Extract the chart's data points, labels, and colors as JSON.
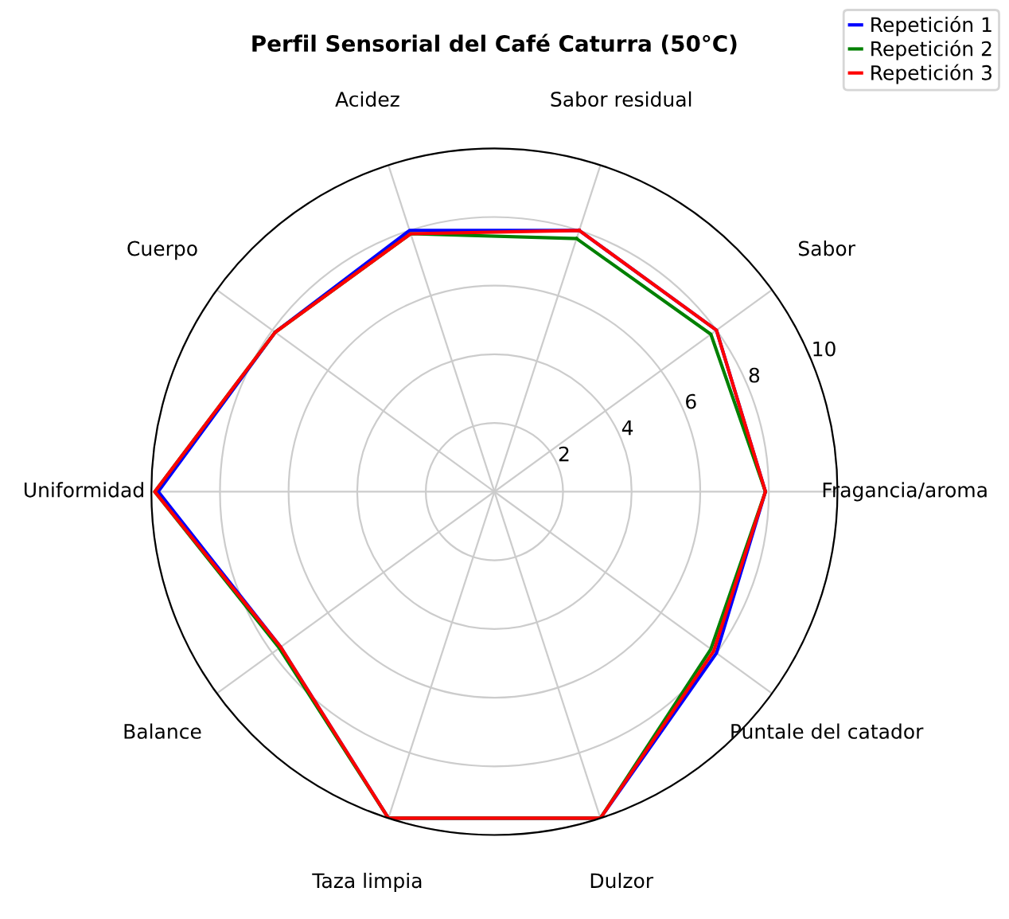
{
  "chart_data": {
    "type": "radar",
    "title": "Perfil Sensorial del Café Caturra (50°C)",
    "categories": [
      "Sabor residual",
      "Sabor",
      "Fragancia/aroma",
      "Puntale del catador",
      "Dulzor",
      "Taza limpia",
      "Balance",
      "Uniformidad",
      "Cuerpo",
      "Acidez"
    ],
    "series": [
      {
        "name": "Repetición 1",
        "color": "#0000ff",
        "values": [
          8.0,
          8.0,
          7.9,
          8.0,
          10,
          10,
          7.7,
          9.8,
          7.9,
          8.0
        ]
      },
      {
        "name": "Repetición 2",
        "color": "#008000",
        "values": [
          7.75,
          7.8,
          7.9,
          7.8,
          10,
          10,
          7.75,
          9.9,
          7.9,
          7.9
        ]
      },
      {
        "name": "Repetición 3",
        "color": "#ff0000",
        "values": [
          8.0,
          8.0,
          7.9,
          7.9,
          10,
          10,
          7.7,
          9.9,
          7.9,
          7.9
        ]
      }
    ],
    "ylim": [
      0,
      10
    ],
    "yticks": [
      2,
      4,
      6,
      8,
      10
    ],
    "grid": true,
    "legend": "top right"
  }
}
